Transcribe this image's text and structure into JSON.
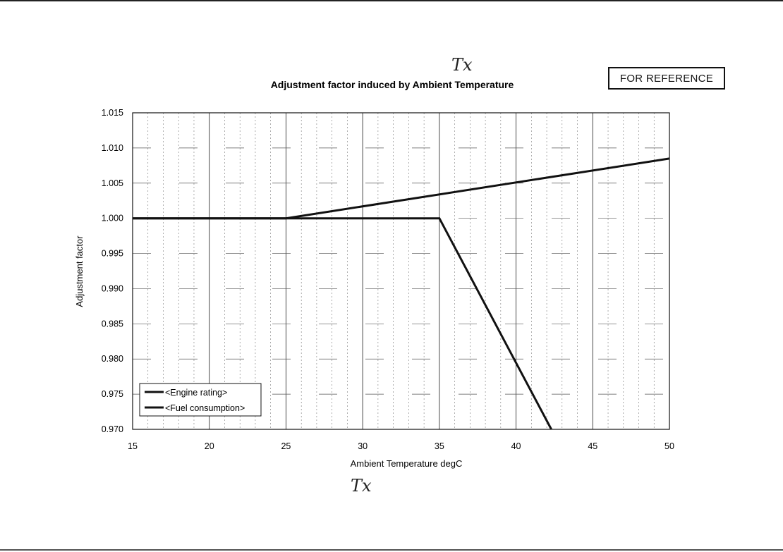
{
  "stamp_text": "FOR REFERENCE",
  "annotations": {
    "top": "Tx",
    "bottom": "Tx"
  },
  "chart_data": {
    "type": "line",
    "title": "Adjustment factor induced by Ambient Temperature",
    "xlabel": "Ambient Temperature  degC",
    "ylabel": "Adjustment factor",
    "xlim": [
      15,
      50
    ],
    "ylim": [
      0.97,
      1.015
    ],
    "xticks": [
      "15",
      "20",
      "25",
      "30",
      "35",
      "40",
      "45",
      "50"
    ],
    "yticks": [
      "1.015",
      "1.010",
      "1.005",
      "1.000",
      "0.995",
      "0.990",
      "0.985",
      "0.980",
      "0.975",
      "0.970"
    ],
    "grid": true,
    "legend_position": "bottom-left",
    "series": [
      {
        "name": "<Engine rating>",
        "x": [
          15,
          35,
          42.3
        ],
        "y": [
          1.0,
          1.0,
          0.97
        ]
      },
      {
        "name": "<Fuel consumption>",
        "x": [
          15,
          25,
          50
        ],
        "y": [
          1.0,
          1.0,
          1.0085
        ]
      }
    ]
  }
}
